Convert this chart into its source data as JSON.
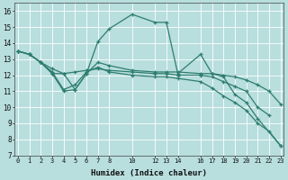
{
  "xlabel": "Humidex (Indice chaleur)",
  "bg_color": "#b8dede",
  "grid_color": "#d0eaea",
  "line_color": "#2e7d6e",
  "ylim": [
    7,
    16.5
  ],
  "yticks": [
    7,
    8,
    9,
    10,
    11,
    12,
    13,
    14,
    15,
    16
  ],
  "xticks": [
    0,
    1,
    2,
    3,
    4,
    5,
    6,
    7,
    8,
    10,
    12,
    13,
    14,
    16,
    17,
    18,
    19,
    20,
    21,
    22,
    23
  ],
  "xlim": [
    -0.3,
    23.3
  ],
  "series1_x": [
    0,
    1,
    2,
    3,
    4,
    5,
    6,
    7,
    8,
    10,
    12,
    13,
    14,
    16,
    17,
    18,
    19,
    20,
    21,
    23
  ],
  "series1_y": [
    13.5,
    13.3,
    12.8,
    12.1,
    11.0,
    11.1,
    12.1,
    14.1,
    14.9,
    15.8,
    15.3,
    15.3,
    12.1,
    13.3,
    12.1,
    11.9,
    10.8,
    10.3,
    9.3,
    7.6
  ],
  "series2_x": [
    0,
    1,
    2,
    3,
    4,
    5,
    6,
    7,
    8,
    10,
    12,
    13,
    14,
    16,
    17,
    18,
    19,
    20,
    21,
    22,
    23
  ],
  "series2_y": [
    13.5,
    13.3,
    12.8,
    12.1,
    12.1,
    11.1,
    12.1,
    12.8,
    12.6,
    12.3,
    12.2,
    12.2,
    12.2,
    12.1,
    12.1,
    12.0,
    11.9,
    11.7,
    11.4,
    11.0,
    10.2
  ],
  "series3_x": [
    0,
    1,
    2,
    3,
    4,
    5,
    6,
    7,
    8,
    10,
    12,
    13,
    14,
    16,
    17,
    18,
    19,
    20,
    21,
    22,
    23
  ],
  "series3_y": [
    13.5,
    13.3,
    12.8,
    12.2,
    11.1,
    11.4,
    12.2,
    12.5,
    12.2,
    12.0,
    11.9,
    11.9,
    11.8,
    11.6,
    11.2,
    10.7,
    10.3,
    9.8,
    9.0,
    8.5,
    7.6
  ],
  "series4_x": [
    0,
    1,
    2,
    3,
    4,
    5,
    6,
    7,
    8,
    10,
    12,
    13,
    14,
    16,
    17,
    18,
    19,
    20,
    21,
    22
  ],
  "series4_y": [
    13.5,
    13.3,
    12.8,
    12.4,
    12.1,
    12.2,
    12.3,
    12.4,
    12.3,
    12.2,
    12.1,
    12.1,
    12.0,
    12.0,
    11.9,
    11.6,
    11.3,
    11.0,
    10.0,
    9.5
  ]
}
